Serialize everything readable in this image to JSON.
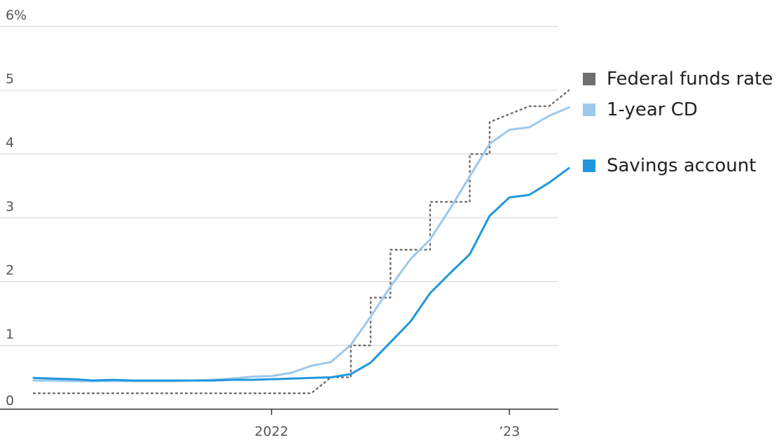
{
  "chart_data": {
    "type": "line",
    "title": "",
    "xlabel": "",
    "ylabel": "",
    "ylim": [
      0,
      6
    ],
    "xlim": [
      "2021-01",
      "2023-04"
    ],
    "y_ticks": [
      {
        "value": 0,
        "label": "0"
      },
      {
        "value": 1,
        "label": "1"
      },
      {
        "value": 2,
        "label": "2"
      },
      {
        "value": 3,
        "label": "3"
      },
      {
        "value": 4,
        "label": "4"
      },
      {
        "value": 5,
        "label": "5"
      },
      {
        "value": 6,
        "label": "6%"
      }
    ],
    "x_ticks": [
      {
        "value": "2022-01",
        "label": "2022"
      },
      {
        "value": "2023-01",
        "label": "’23"
      }
    ],
    "grid": true,
    "legend_position": "right",
    "series": [
      {
        "name": "Federal funds rate",
        "color": "#6e6e6e",
        "style": "dotted",
        "step": true,
        "legend_swatch_color": "#6e6e6e",
        "points": [
          [
            "2021-01",
            0.25
          ],
          [
            "2022-03",
            0.25
          ],
          [
            "2022-04",
            0.5
          ],
          [
            "2022-05",
            0.5
          ],
          [
            "2022-05",
            1.0
          ],
          [
            "2022-06",
            1.0
          ],
          [
            "2022-06",
            1.75
          ],
          [
            "2022-07",
            1.75
          ],
          [
            "2022-07",
            2.5
          ],
          [
            "2022-09",
            2.5
          ],
          [
            "2022-09",
            3.25
          ],
          [
            "2022-11",
            3.25
          ],
          [
            "2022-11",
            4.0
          ],
          [
            "2022-12",
            4.0
          ],
          [
            "2022-12",
            4.5
          ],
          [
            "2023-02",
            4.75
          ],
          [
            "2023-03",
            4.75
          ],
          [
            "2023-04",
            5.0
          ]
        ]
      },
      {
        "name": "1-year CD",
        "color": "#9cc8ec",
        "style": "solid",
        "legend_swatch_color": "#9cc8ec",
        "points": [
          [
            "2021-01",
            0.45
          ],
          [
            "2021-02",
            0.45
          ],
          [
            "2021-03",
            0.44
          ],
          [
            "2021-04",
            0.44
          ],
          [
            "2021-05",
            0.44
          ],
          [
            "2021-06",
            0.44
          ],
          [
            "2021-07",
            0.44
          ],
          [
            "2021-08",
            0.44
          ],
          [
            "2021-09",
            0.45
          ],
          [
            "2021-10",
            0.46
          ],
          [
            "2021-11",
            0.48
          ],
          [
            "2021-12",
            0.51
          ],
          [
            "2022-01",
            0.52
          ],
          [
            "2022-02",
            0.57
          ],
          [
            "2022-03",
            0.68
          ],
          [
            "2022-04",
            0.74
          ],
          [
            "2022-05",
            1.01
          ],
          [
            "2022-06",
            1.45
          ],
          [
            "2022-07",
            1.92
          ],
          [
            "2022-08",
            2.35
          ],
          [
            "2022-09",
            2.66
          ],
          [
            "2022-10",
            3.14
          ],
          [
            "2022-11",
            3.65
          ],
          [
            "2022-12",
            4.16
          ],
          [
            "2023-01",
            4.38
          ],
          [
            "2023-02",
            4.42
          ],
          [
            "2023-03",
            4.6
          ],
          [
            "2023-04",
            4.73
          ]
        ]
      },
      {
        "name": "Savings account",
        "color": "#1f97dc",
        "style": "solid",
        "legend_swatch_color": "#1f97dc",
        "points": [
          [
            "2021-01",
            0.49
          ],
          [
            "2021-02",
            0.48
          ],
          [
            "2021-03",
            0.47
          ],
          [
            "2021-04",
            0.45
          ],
          [
            "2021-05",
            0.46
          ],
          [
            "2021-06",
            0.45
          ],
          [
            "2021-07",
            0.45
          ],
          [
            "2021-08",
            0.45
          ],
          [
            "2021-09",
            0.45
          ],
          [
            "2021-10",
            0.45
          ],
          [
            "2021-11",
            0.46
          ],
          [
            "2021-12",
            0.46
          ],
          [
            "2022-01",
            0.47
          ],
          [
            "2022-02",
            0.48
          ],
          [
            "2022-03",
            0.49
          ],
          [
            "2022-04",
            0.5
          ],
          [
            "2022-05",
            0.55
          ],
          [
            "2022-06",
            0.73
          ],
          [
            "2022-07",
            1.05
          ],
          [
            "2022-08",
            1.37
          ],
          [
            "2022-09",
            1.82
          ],
          [
            "2022-10",
            2.13
          ],
          [
            "2022-11",
            2.43
          ],
          [
            "2022-12",
            3.03
          ],
          [
            "2023-01",
            3.32
          ],
          [
            "2023-02",
            3.36
          ],
          [
            "2023-03",
            3.55
          ],
          [
            "2023-04",
            3.78
          ]
        ]
      }
    ]
  },
  "legend": [
    {
      "label": "Federal funds rate",
      "color": "#6e6e6e"
    },
    {
      "label": "1-year CD",
      "color": "#9cc8ec"
    },
    {
      "label": "Savings account",
      "color": "#1f97dc"
    }
  ]
}
